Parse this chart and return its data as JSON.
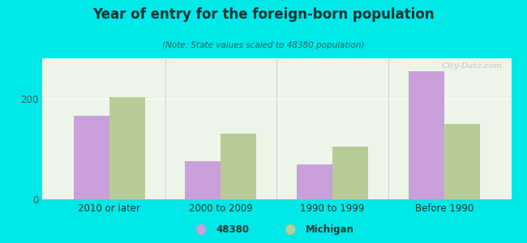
{
  "title": "Year of entry for the foreign-born population",
  "subtitle": "(Note: State values scaled to 48380 population)",
  "categories": [
    "2010 or later",
    "2000 to 2009",
    "1990 to 1999",
    "Before 1990"
  ],
  "values_48380": [
    165,
    75,
    70,
    255
  ],
  "values_michigan": [
    203,
    130,
    105,
    150
  ],
  "color_48380": "#c9a0dc",
  "color_michigan": "#b8cc96",
  "background_outer": "#00e8e8",
  "ylim": [
    0,
    280
  ],
  "yticks": [
    0,
    200
  ],
  "bar_width": 0.32,
  "legend_label_48380": "48380",
  "legend_label_michigan": "Michigan",
  "watermark": "City-Data.com",
  "title_color": "#003333",
  "subtitle_color": "#336666"
}
